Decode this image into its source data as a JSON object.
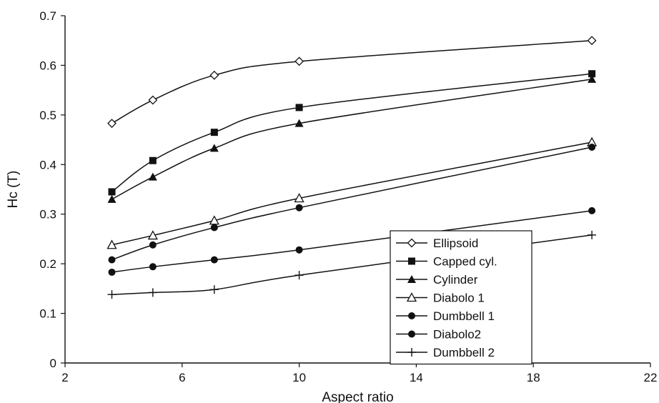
{
  "chart_data": {
    "type": "line",
    "xlabel": "Aspect ratio",
    "ylabel": "Hc (T)",
    "xlim": [
      2,
      22
    ],
    "ylim": [
      0,
      0.7
    ],
    "xticks": [
      "2",
      "6",
      "10",
      "14",
      "18",
      "22"
    ],
    "xtick_values": [
      2,
      6,
      10,
      14,
      18,
      22
    ],
    "yticks": [
      "0",
      "0.1",
      "0.2",
      "0.3",
      "0.4",
      "0.5",
      "0.6",
      "0.7"
    ],
    "ytick_values": [
      0,
      0.1,
      0.2,
      0.3,
      0.4,
      0.5,
      0.6,
      0.7
    ],
    "grid": false,
    "legend_position": "bottom-right inside plot",
    "x": [
      3.6,
      5,
      7.1,
      10,
      20
    ],
    "series": [
      {
        "name": "Ellipsoid",
        "marker": "open-diamond",
        "values": [
          0.483,
          0.53,
          0.58,
          0.608,
          0.65
        ]
      },
      {
        "name": "Capped cyl.",
        "marker": "filled-square",
        "values": [
          0.345,
          0.408,
          0.465,
          0.515,
          0.583
        ]
      },
      {
        "name": "Cylinder",
        "marker": "filled-triangle",
        "values": [
          0.33,
          0.375,
          0.433,
          0.483,
          0.572
        ]
      },
      {
        "name": "Diabolo 1",
        "marker": "open-triangle",
        "values": [
          0.238,
          0.257,
          0.287,
          0.332,
          0.445
        ]
      },
      {
        "name": "Dumbbell 1",
        "marker": "filled-circle",
        "values": [
          0.208,
          0.238,
          0.273,
          0.313,
          0.435
        ]
      },
      {
        "name": "Diabolo2",
        "marker": "filled-circle",
        "values": [
          0.183,
          0.194,
          0.208,
          0.228,
          0.307
        ]
      },
      {
        "name": "Dumbbell 2",
        "marker": "plus",
        "values": [
          0.138,
          0.142,
          0.148,
          0.177,
          0.258
        ]
      }
    ],
    "colors": {
      "line": "#111111",
      "background": "#ffffff"
    }
  }
}
